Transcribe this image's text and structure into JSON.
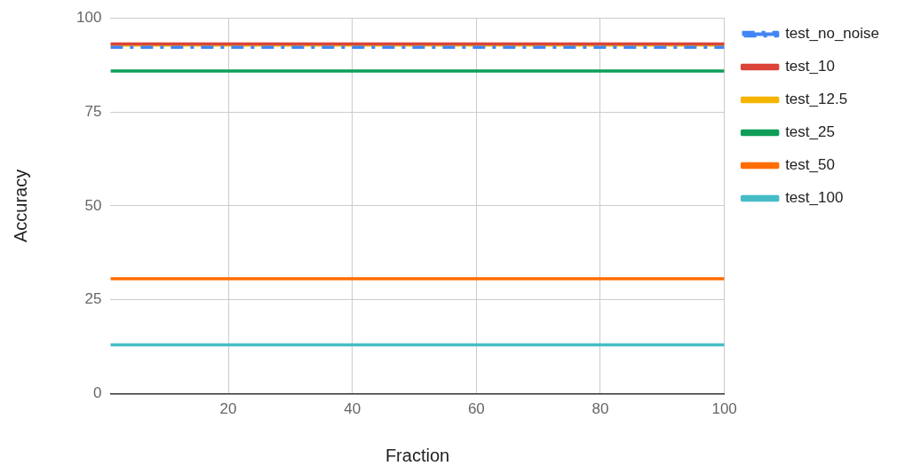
{
  "chart_data": {
    "type": "line",
    "xlabel": "Fraction",
    "ylabel": "Accuracy",
    "x": [
      1,
      100
    ],
    "xlim": [
      1,
      100
    ],
    "xticks": [
      20,
      40,
      60,
      80,
      100
    ],
    "ylim": [
      0,
      100
    ],
    "yticks": [
      0,
      25,
      50,
      75,
      100
    ],
    "grid": true,
    "legend": "top right",
    "marker": "none",
    "series": [
      {
        "name": "test_no_noise",
        "color": "#4285f4",
        "values": [
          92.2,
          92.2
        ],
        "line_style": "dashdot"
      },
      {
        "name": "test_10",
        "color": "#db4437",
        "values": [
          93.1,
          93.1
        ]
      },
      {
        "name": "test_12.5",
        "color": "#f4b400",
        "values": [
          92.8,
          92.8
        ]
      },
      {
        "name": "test_25",
        "color": "#0f9d58",
        "values": [
          85.9,
          85.9
        ]
      },
      {
        "name": "test_50",
        "color": "#ff6d00",
        "values": [
          30.6,
          30.6
        ]
      },
      {
        "name": "test_100",
        "color": "#46bdc6",
        "values": [
          13.0,
          13.0
        ]
      }
    ]
  }
}
